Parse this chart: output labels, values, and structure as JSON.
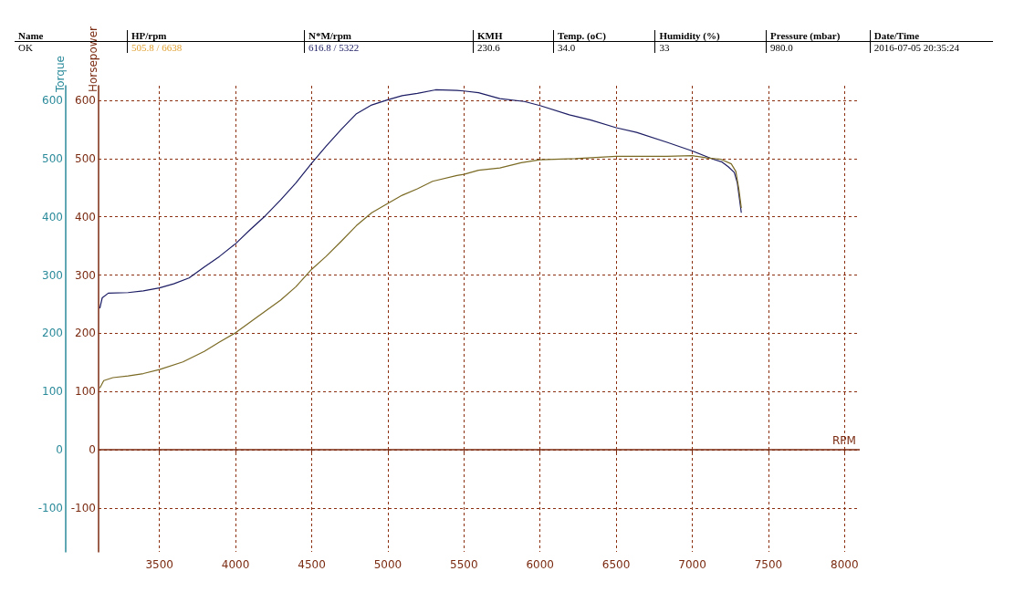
{
  "chart_data": {
    "type": "line",
    "xlabel": "RPM",
    "ylabel": "Torque",
    "y2label": "Horsepower",
    "annotations": [
      "Name",
      "HP/rpm",
      "N*M/rpm",
      "KMH",
      "Temp. (oC)",
      "Humidity (%)",
      "Pressure (mbar)",
      "Date/Time",
      "OK",
      "505.8 / 6638",
      "616.8 / 5322",
      "230.6",
      "34.0",
      "33",
      "980.0",
      "2016-07-05 20:35:24"
    ],
    "xlim": [
      3100,
      8100
    ],
    "xticks": [
      3500,
      4000,
      4500,
      5000,
      5500,
      6000,
      6500,
      7000,
      7500,
      8000
    ],
    "ylim": [
      -175,
      625
    ],
    "yticks": [
      -100,
      0,
      100,
      200,
      300,
      400,
      500,
      600
    ],
    "y2lim": [
      -175,
      625
    ],
    "y2ticks": [
      -100,
      0,
      100,
      200,
      300,
      400,
      500,
      600
    ],
    "grid": true,
    "marker": "none",
    "line_style": "solid",
    "ref_lines": [
      {
        "axis": "y",
        "value": 0,
        "color": "#7a2a10",
        "line_style": "solid"
      }
    ],
    "series": [
      {
        "color": "#1c1c64",
        "x": [
          3108,
          3124,
          3164,
          3294,
          3394,
          3500,
          3594,
          3694,
          3794,
          3894,
          4000,
          4096,
          4196,
          4296,
          4396,
          4500,
          4594,
          4694,
          4794,
          4894,
          5000,
          5094,
          5194,
          5314,
          5454,
          5500,
          5596,
          5736,
          5896,
          6000,
          6192,
          6334,
          6500,
          6634,
          6834,
          7000,
          7136,
          7196,
          7236,
          7276,
          7296,
          7322
        ],
        "values": [
          243,
          261,
          269,
          270,
          273,
          278,
          285,
          295,
          314,
          332,
          354,
          378,
          402,
          429,
          458,
          492,
          521,
          550,
          577,
          592,
          601,
          608,
          612,
          618,
          617,
          616,
          613,
          603,
          598,
          591,
          575,
          566,
          553,
          545,
          528,
          513,
          499,
          494,
          486,
          476,
          458,
          407
        ]
      },
      {
        "color": "#7a6a24",
        "x": [
          3108,
          3134,
          3194,
          3294,
          3394,
          3500,
          3654,
          3794,
          3894,
          4000,
          4136,
          4296,
          4396,
          4500,
          4594,
          4694,
          4794,
          4894,
          5000,
          5094,
          5194,
          5294,
          5454,
          5500,
          5596,
          5736,
          5876,
          6000,
          6232,
          6500,
          6834,
          7000,
          7096,
          7186,
          7256,
          7286,
          7306,
          7322
        ],
        "values": [
          106,
          119,
          124,
          127,
          131,
          138,
          151,
          169,
          185,
          201,
          227,
          257,
          280,
          310,
          332,
          358,
          385,
          407,
          423,
          437,
          448,
          461,
          471,
          473,
          480,
          484,
          493,
          498,
          500,
          504,
          504,
          505,
          501,
          499,
          491,
          478,
          447,
          415
        ]
      }
    ]
  }
}
